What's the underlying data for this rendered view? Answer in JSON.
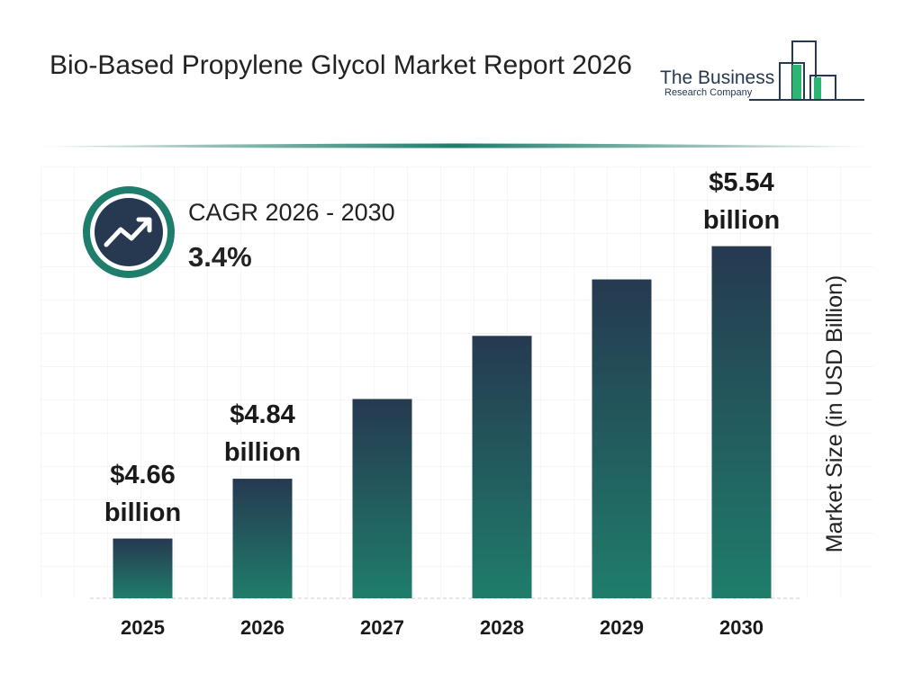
{
  "chart_data": {
    "type": "bar",
    "title": "Bio-Based Propylene Glycol Market Report 2026",
    "brand": [
      "The Business",
      "Research Company"
    ],
    "cagr_label": "CAGR 2026 - 2030",
    "cagr_value": "3.4%",
    "y_axis_label": "Market Size (in USD Billion)",
    "categories": [
      "2025",
      "2026",
      "2027",
      "2028",
      "2029",
      "2030"
    ],
    "values": [
      4.66,
      4.84,
      5.08,
      5.27,
      5.44,
      5.54
    ],
    "value_labels": [
      "$4.66 billion",
      "$4.84 billion",
      null,
      null,
      null,
      "$5.54 billion"
    ],
    "gradient": [
      "#263950",
      "#1f7d6b"
    ],
    "ylim": [
      4.48,
      5.78
    ],
    "grid": true
  }
}
